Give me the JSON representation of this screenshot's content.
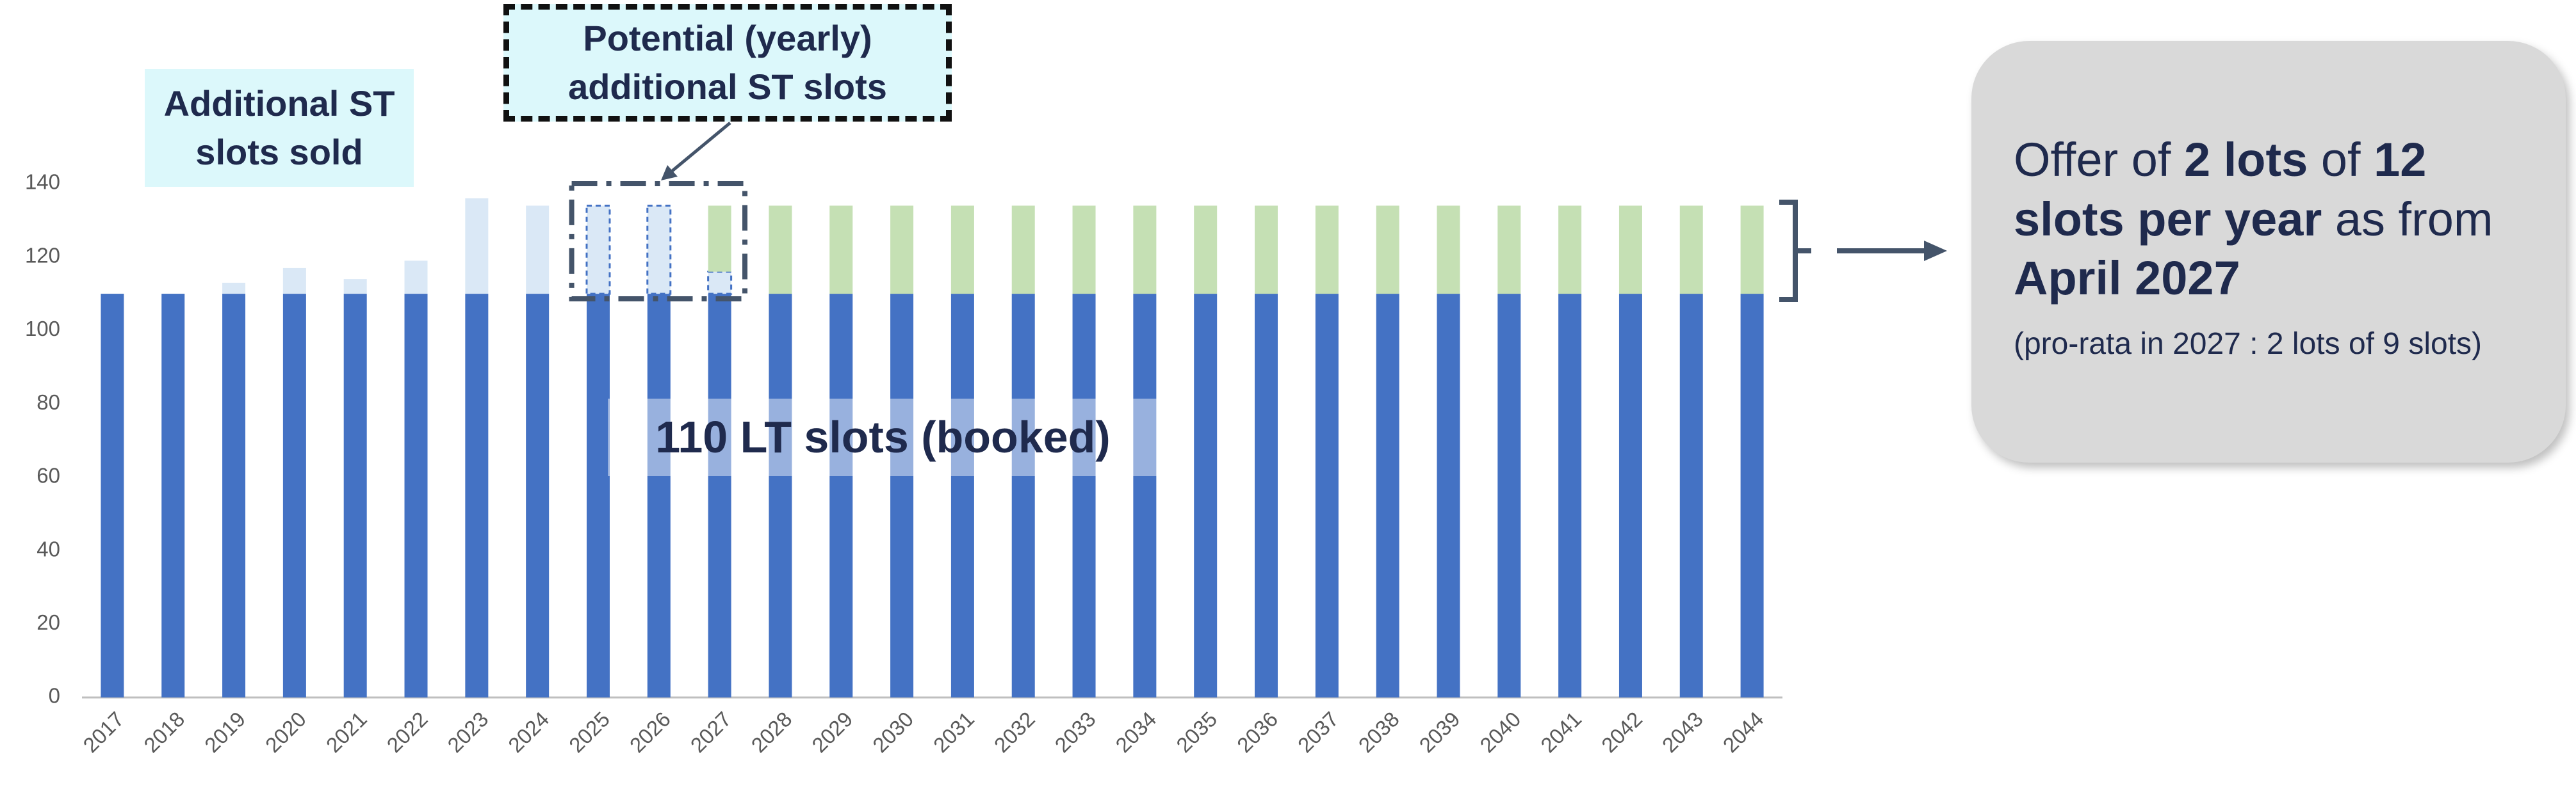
{
  "chart_data": {
    "type": "stacked-bar",
    "categories": [
      "2017",
      "2018",
      "2019",
      "2020",
      "2021",
      "2022",
      "2023",
      "2024",
      "2025",
      "2026",
      "2027",
      "2028",
      "2029",
      "2030",
      "2031",
      "2032",
      "2033",
      "2034",
      "2035",
      "2036",
      "2037",
      "2038",
      "2039",
      "2040",
      "2041",
      "2042",
      "2043",
      "2044"
    ],
    "series": [
      {
        "name": "110 LT slots (booked)",
        "color": "#4472c4",
        "values": [
          110,
          110,
          110,
          110,
          110,
          110,
          110,
          110,
          110,
          110,
          110,
          110,
          110,
          110,
          110,
          110,
          110,
          110,
          110,
          110,
          110,
          110,
          110,
          110,
          110,
          110,
          110,
          110
        ]
      },
      {
        "name": "Additional ST slots sold",
        "color": "#dae8f6",
        "values": [
          0,
          0,
          3,
          7,
          4,
          9,
          26,
          24,
          24,
          24,
          6,
          0,
          0,
          0,
          0,
          0,
          0,
          0,
          0,
          0,
          0,
          0,
          0,
          0,
          0,
          0,
          0,
          0
        ]
      },
      {
        "name": "Potential (yearly) additional ST slots",
        "color": "#c5e0b4",
        "values": [
          0,
          0,
          0,
          0,
          0,
          0,
          0,
          0,
          0,
          0,
          18,
          24,
          24,
          24,
          24,
          24,
          24,
          24,
          24,
          24,
          24,
          24,
          24,
          24,
          24,
          24,
          24,
          24
        ]
      }
    ],
    "ylim": [
      0,
      140
    ],
    "yticks": [
      0,
      20,
      40,
      60,
      80,
      100,
      120,
      140
    ],
    "grid": false,
    "offer": [
      "Offer of ",
      "2 lots",
      " of ",
      "12 slots per year",
      " as from ",
      "April 2027"
    ],
    "offer_note": "(pro-rata in 2027 : 2 lots of 9 slots)"
  }
}
